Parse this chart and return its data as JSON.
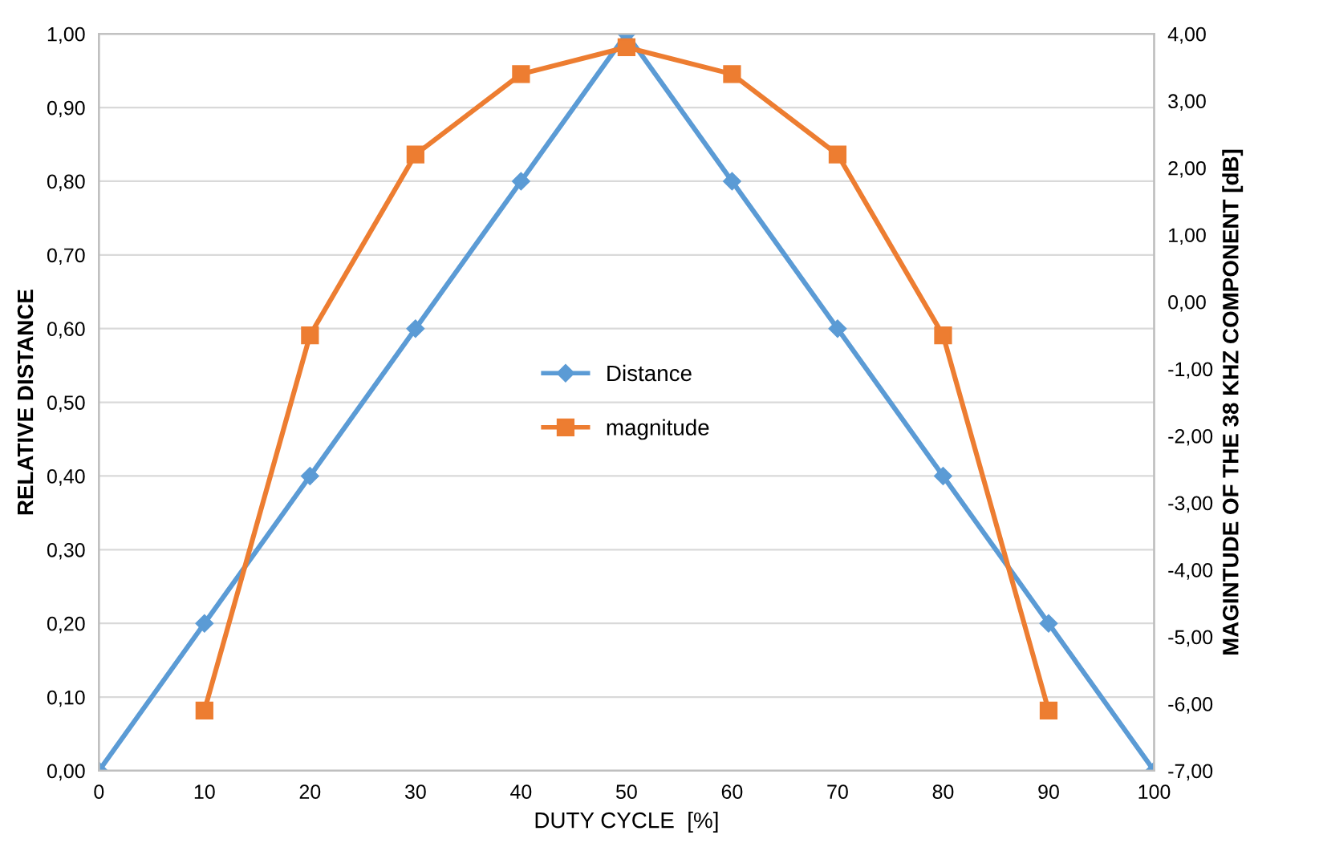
{
  "chart_data": {
    "type": "line",
    "xlabel": "DUTY CYCLE  [%]",
    "ylabel": "RELATIVE DISTANCE",
    "y2label": "MAGINTUDE OF THE 38 KHZ COMPONENT [dB]",
    "xlim": [
      0,
      100
    ],
    "xticks": [
      0,
      10,
      20,
      30,
      40,
      50,
      60,
      70,
      80,
      90,
      100
    ],
    "ylim": [
      0,
      1
    ],
    "yticks": [
      {
        "value": 0,
        "label": "0,00"
      },
      {
        "value": 0.1,
        "label": "0,10"
      },
      {
        "value": 0.2,
        "label": "0,20"
      },
      {
        "value": 0.3,
        "label": "0,30"
      },
      {
        "value": 0.4,
        "label": "0,40"
      },
      {
        "value": 0.5,
        "label": "0,50"
      },
      {
        "value": 0.6,
        "label": "0,60"
      },
      {
        "value": 0.7,
        "label": "0,70"
      },
      {
        "value": 0.8,
        "label": "0,80"
      },
      {
        "value": 0.9,
        "label": "0,90"
      },
      {
        "value": 1,
        "label": "1,00"
      }
    ],
    "y2lim": [
      -7,
      4
    ],
    "y2ticks": [
      {
        "value": -7,
        "label": "-7,00"
      },
      {
        "value": -6,
        "label": "-6,00"
      },
      {
        "value": -5,
        "label": "-5,00"
      },
      {
        "value": -4,
        "label": "-4,00"
      },
      {
        "value": -3,
        "label": "-3,00"
      },
      {
        "value": -2,
        "label": "-2,00"
      },
      {
        "value": -1,
        "label": "-1,00"
      },
      {
        "value": 0,
        "label": "0,00"
      },
      {
        "value": 1,
        "label": "1,00"
      },
      {
        "value": 2,
        "label": "2,00"
      },
      {
        "value": 3,
        "label": "3,00"
      },
      {
        "value": 4,
        "label": "4,00"
      }
    ],
    "grid": "y",
    "legend": "center",
    "series": [
      {
        "name": "Distance",
        "color": "#5b9bd5",
        "marker": "diamond",
        "x": [
          0,
          10,
          20,
          30,
          40,
          50,
          60,
          70,
          80,
          90,
          100
        ],
        "values": [
          0,
          0.2,
          0.4,
          0.6,
          0.8,
          1.0,
          0.8,
          0.6,
          0.4,
          0.2,
          0
        ]
      },
      {
        "name": "magnitude",
        "color": "#ed7d31",
        "marker": "square",
        "axis": "y2",
        "x": [
          10,
          20,
          30,
          40,
          50,
          60,
          70,
          80,
          90
        ],
        "values": [
          -6.1,
          -0.5,
          2.2,
          3.4,
          3.8,
          3.4,
          2.2,
          -0.5,
          -6.1
        ]
      }
    ]
  }
}
